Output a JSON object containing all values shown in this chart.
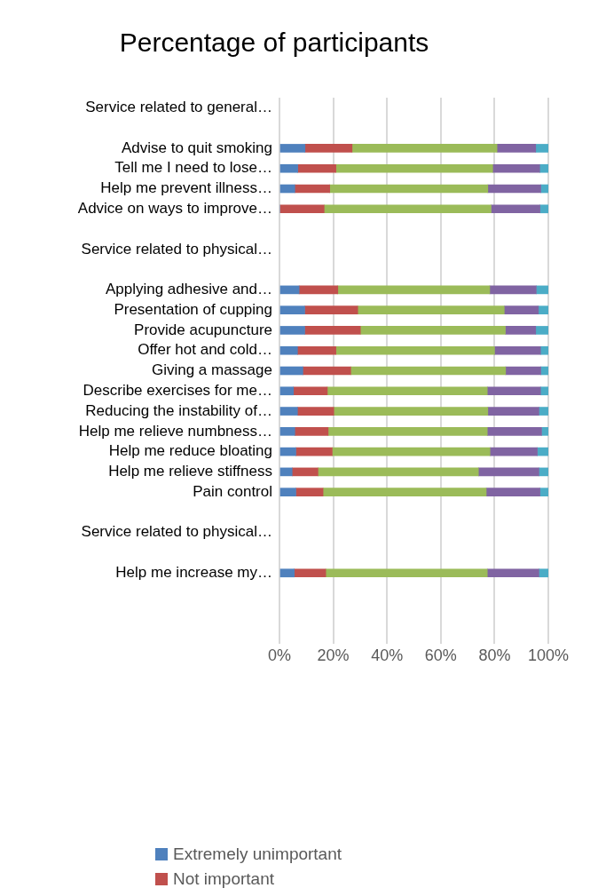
{
  "chart_data": {
    "type": "bar",
    "orientation": "horizontal",
    "stacked": true,
    "title": "Percentage of participants",
    "categories": [
      "Service related to general…",
      null,
      "Advise to quit smoking",
      "Tell me I need to lose…",
      "Help me prevent illness…",
      "Advice on ways to improve…",
      null,
      "Service related to physical…",
      null,
      "Applying adhesive and…",
      "Presentation of cupping",
      "Provide acupuncture",
      "Offer hot and cold…",
      "Giving a massage",
      "Describe exercises for me…",
      "Reducing the instability of…",
      "Help me relieve numbness…",
      "Help me reduce bloating",
      "Help me relieve stiffness",
      "Pain control",
      null,
      "Service related to physical…",
      null,
      "Help me increase my…",
      null,
      null,
      null
    ],
    "series": [
      {
        "name": "Extremely unimportant",
        "color": "#4f81bd",
        "values": [
          null,
          null,
          9.5,
          6.8,
          5.7,
          0,
          null,
          null,
          null,
          7.3,
          9.4,
          9.4,
          6.7,
          8.7,
          5.2,
          6.7,
          5.7,
          6.1,
          4.7,
          6.1,
          null,
          null,
          null,
          5.5,
          null,
          null,
          null
        ]
      },
      {
        "name": "Not important",
        "color": "#c0504d",
        "values": [
          null,
          null,
          17.5,
          14.2,
          13.0,
          16.6,
          null,
          null,
          null,
          14.4,
          19.7,
          20.7,
          14.3,
          17.8,
          12.6,
          13.5,
          12.4,
          13.5,
          9.6,
          10.1,
          null,
          null,
          null,
          11.7,
          null,
          null,
          null
        ]
      },
      {
        "color": "#9bbb59",
        "values": [
          null,
          null,
          53.9,
          58.3,
          58.8,
          62.1,
          null,
          null,
          null,
          56.5,
          54.5,
          53.9,
          59.0,
          57.6,
          59.5,
          57.3,
          59.2,
          58.7,
          59.7,
          60.7,
          null,
          null,
          null,
          60.1,
          null,
          null,
          null
        ]
      },
      {
        "color": "#8064a2",
        "values": [
          null,
          null,
          14.4,
          17.5,
          19.7,
          18.2,
          null,
          null,
          null,
          17.3,
          12.7,
          11.3,
          17.1,
          13.1,
          19.8,
          19.0,
          20.2,
          17.6,
          22.5,
          20.0,
          null,
          null,
          null,
          19.2,
          null,
          null,
          null
        ]
      },
      {
        "color": "#4bacc6",
        "values": [
          null,
          null,
          4.7,
          3.2,
          2.8,
          3.1,
          null,
          null,
          null,
          4.5,
          3.7,
          4.7,
          2.9,
          2.8,
          2.9,
          3.5,
          2.5,
          4.1,
          3.5,
          3.1,
          null,
          null,
          null,
          3.5,
          null,
          null,
          null
        ]
      }
    ],
    "xlim": [
      0,
      100
    ],
    "xticks": [
      {
        "value": 0,
        "label": "0%"
      },
      {
        "value": 20,
        "label": "20%"
      },
      {
        "value": 40,
        "label": "40%"
      },
      {
        "value": 60,
        "label": "60%"
      },
      {
        "value": 80,
        "label": "80%"
      },
      {
        "value": 100,
        "label": "100%"
      }
    ],
    "grid": "x",
    "legend": "bottom"
  }
}
